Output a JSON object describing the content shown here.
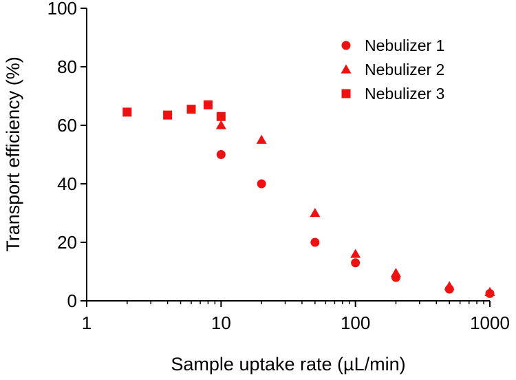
{
  "chart_data": {
    "type": "scatter",
    "xlabel": "Sample uptake rate (µL/min)",
    "ylabel": "Transport efficiency (%)",
    "x_scale": "log",
    "xlim": [
      1,
      1000
    ],
    "ylim": [
      0,
      100
    ],
    "x_ticks": [
      1,
      10,
      100,
      1000
    ],
    "x_tick_labels": [
      "1",
      "10",
      "100",
      "1000"
    ],
    "y_ticks": [
      0,
      20,
      40,
      60,
      80,
      100
    ],
    "y_tick_labels": [
      "0",
      "20",
      "40",
      "60",
      "80",
      "100"
    ],
    "grid": false,
    "legend_position": "top-right",
    "marker_color": "#ee1111",
    "series": [
      {
        "name": "Nebulizer 1",
        "marker": "circle",
        "points": [
          {
            "x": 10,
            "y": 50
          },
          {
            "x": 20,
            "y": 40
          },
          {
            "x": 50,
            "y": 20
          },
          {
            "x": 100,
            "y": 13
          },
          {
            "x": 200,
            "y": 8
          },
          {
            "x": 500,
            "y": 4
          },
          {
            "x": 1000,
            "y": 2.5
          }
        ]
      },
      {
        "name": "Nebulizer 2",
        "marker": "triangle",
        "points": [
          {
            "x": 10,
            "y": 60
          },
          {
            "x": 20,
            "y": 55
          },
          {
            "x": 50,
            "y": 30
          },
          {
            "x": 100,
            "y": 16
          },
          {
            "x": 200,
            "y": 9.5
          },
          {
            "x": 500,
            "y": 5
          },
          {
            "x": 1000,
            "y": 3
          }
        ]
      },
      {
        "name": "Nebulizer 3",
        "marker": "square",
        "points": [
          {
            "x": 2,
            "y": 64.5
          },
          {
            "x": 4,
            "y": 63.5
          },
          {
            "x": 6,
            "y": 65.5
          },
          {
            "x": 8,
            "y": 67
          },
          {
            "x": 10,
            "y": 63
          }
        ]
      }
    ]
  }
}
